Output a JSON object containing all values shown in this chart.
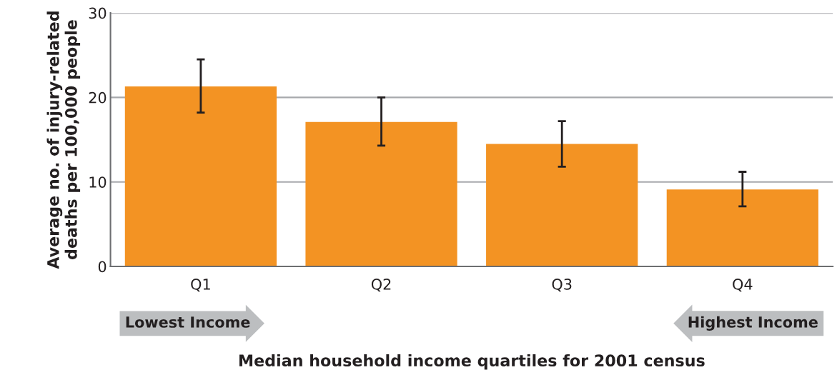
{
  "chart_data": {
    "type": "bar",
    "xlabel": "Median household income quartiles for 2001 census",
    "ylabel": "Average no. of injury-related\ndeaths per 100,000 people",
    "categories": [
      "Q1",
      "Q2",
      "Q3",
      "Q4"
    ],
    "values": [
      21.3,
      17.1,
      14.5,
      9.1
    ],
    "errors": [
      [
        18.2,
        24.5
      ],
      [
        14.3,
        20.0
      ],
      [
        11.8,
        17.2
      ],
      [
        7.1,
        11.2
      ]
    ],
    "color": "#f39323",
    "ylim": [
      0,
      30
    ],
    "yticks": [
      0,
      10,
      20,
      30
    ],
    "grid": "y",
    "annotations": [
      "Lowest Income",
      "Highest Income"
    ]
  }
}
